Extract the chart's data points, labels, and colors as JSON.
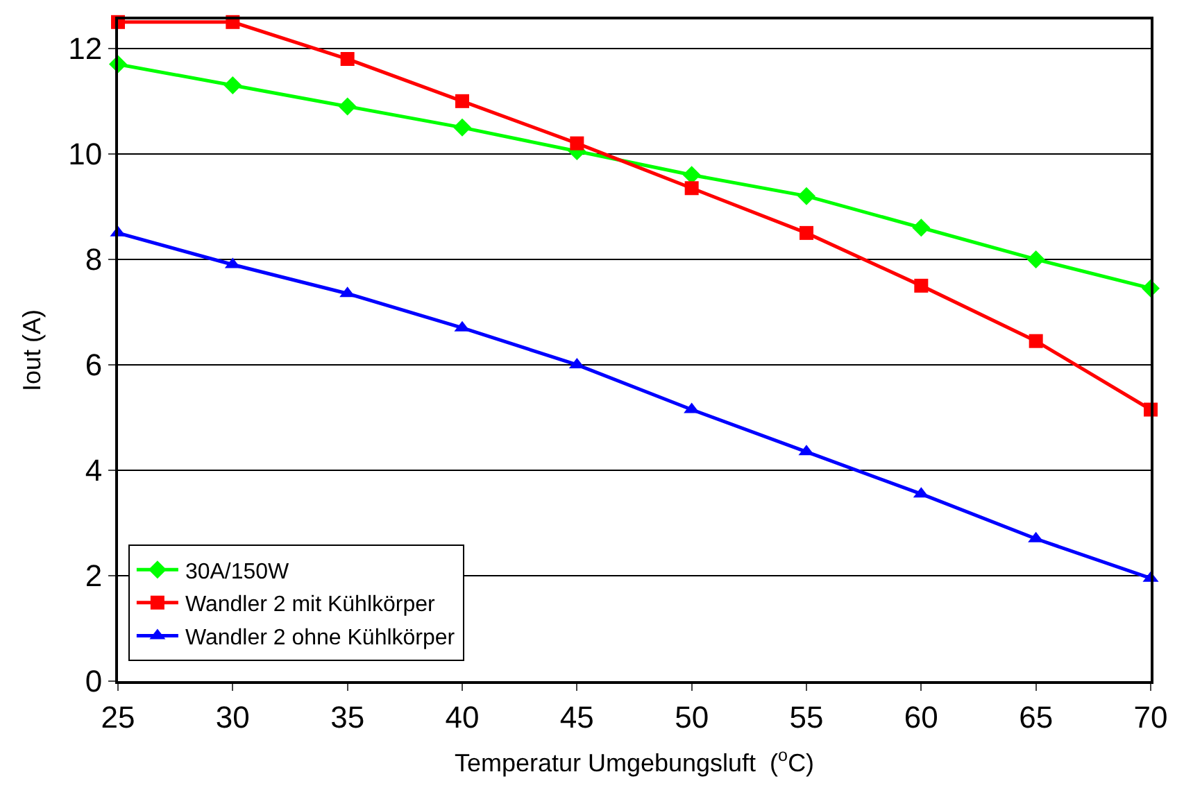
{
  "chart_data": {
    "type": "line",
    "xlabel": "Temperatur Umgebungsluft  ($^{o}$C)",
    "ylabel": "Iout (A)",
    "x": [
      25,
      30,
      35,
      40,
      45,
      50,
      55,
      60,
      65,
      70
    ],
    "series": [
      {
        "name": "30A/150W",
        "color": "#00ff00",
        "marker": "diamond",
        "values": [
          11.7,
          11.3,
          10.9,
          10.5,
          10.05,
          9.6,
          9.2,
          8.6,
          8.0,
          7.45
        ]
      },
      {
        "name": "Wandler 2 mit Kühlkörper",
        "color": "#ff0000",
        "marker": "square",
        "values": [
          12.5,
          12.5,
          11.8,
          11.0,
          10.2,
          9.35,
          8.5,
          7.5,
          6.45,
          5.15
        ]
      },
      {
        "name": "Wandler 2 ohne Kühlkörper",
        "color": "#0000ff",
        "marker": "triangle",
        "values": [
          8.5,
          7.9,
          7.35,
          6.7,
          6.0,
          5.15,
          4.35,
          3.55,
          2.7,
          1.95
        ]
      }
    ],
    "xlim": [
      25,
      70
    ],
    "xticks": [
      25,
      30,
      35,
      40,
      45,
      50,
      55,
      60,
      65,
      70
    ],
    "ylim": [
      0,
      12.55
    ],
    "yticks": [
      0,
      2,
      4,
      6,
      8,
      10,
      12
    ],
    "grid": "y",
    "legend": "bottom left",
    "line_style": "solid"
  }
}
